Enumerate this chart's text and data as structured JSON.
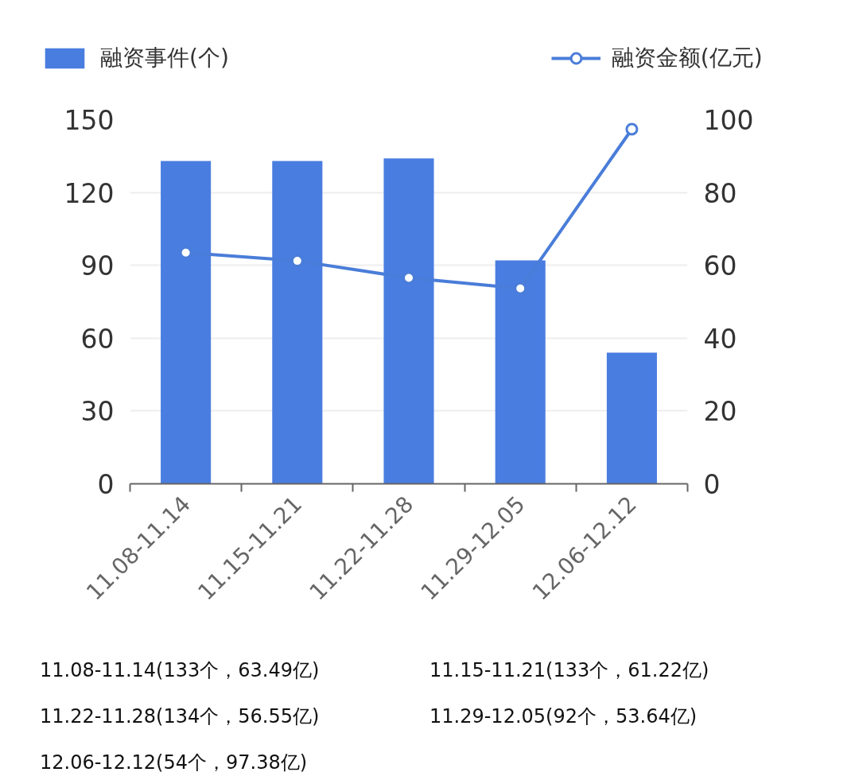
{
  "chart_data": {
    "type": "bar",
    "categories": [
      "11.08-11.14",
      "11.15-11.21",
      "11.22-11.28",
      "11.29-12.05",
      "12.06-12.12"
    ],
    "series": [
      {
        "name": "融资事件(个)",
        "color": "#4a7de0",
        "values": [
          133,
          133,
          134,
          92,
          54
        ]
      },
      {
        "name": "融资金额(亿元)",
        "type": "line",
        "axis": "y2",
        "color": "#4a7dd9",
        "values": [
          63.49,
          61.22,
          56.55,
          53.64,
          97.38
        ]
      }
    ],
    "ylim": [
      0,
      150
    ],
    "yticks": [
      0,
      30,
      60,
      90,
      120,
      150
    ],
    "y2lim": [
      0,
      100
    ],
    "y2ticks": [
      0,
      20,
      40,
      60,
      80,
      100
    ],
    "annotations": [
      "11.08-11.14(133个，63.49亿)",
      "11.15-11.21(133个，61.22亿)",
      "11.22-11.28(134个，56.55亿)",
      "11.29-12.05(92个，53.64亿)",
      "12.06-12.12(54个，97.38亿)"
    ],
    "grid": "y",
    "legend": "top",
    "marker": "circle",
    "line_style": "solid"
  }
}
